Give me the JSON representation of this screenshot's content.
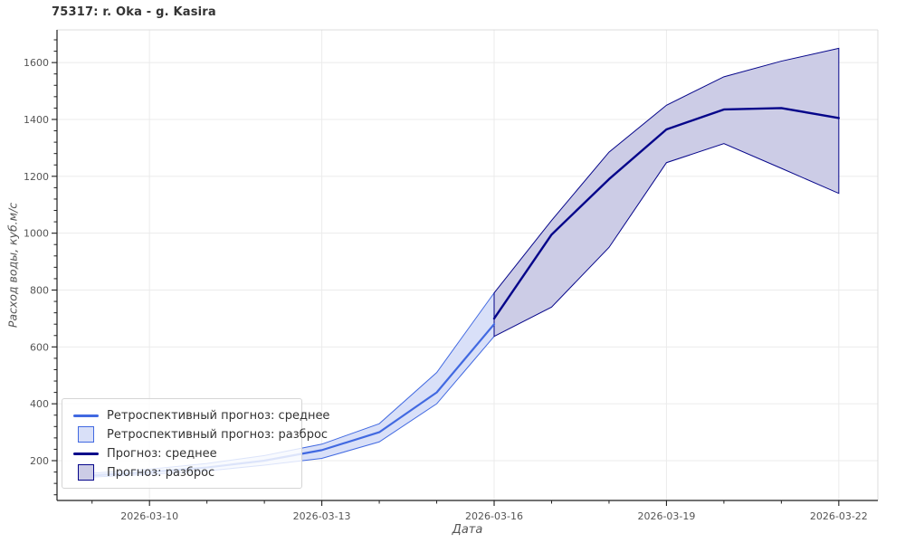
{
  "title": "75317: r. Oka - g. Kasira",
  "axes": {
    "x_label": "Дата",
    "y_label": "Расход воды, куб.м/с",
    "x_ticks": [
      "2026-03-10",
      "2026-03-13",
      "2026-03-16",
      "2026-03-19",
      "2026-03-22"
    ],
    "y_ticks": [
      200,
      400,
      600,
      800,
      1000,
      1200,
      1400,
      1600
    ]
  },
  "legend": [
    {
      "label": "Ретроспективный прогноз: среднее",
      "type": "line",
      "color": "#4169e1"
    },
    {
      "label": "Ретроспективный прогноз: разброс",
      "type": "patch",
      "fill": "#d9e0f8",
      "edge": "#4169e1"
    },
    {
      "label": "Прогноз: среднее",
      "type": "line",
      "color": "#05058a"
    },
    {
      "label": "Прогноз: разброс",
      "type": "patch",
      "fill": "#cccce6",
      "edge": "#05058a"
    }
  ],
  "colors": {
    "grid": "#ebebeb",
    "spine_dark": "#1f1f1f",
    "spine_light": "#dcdcdc",
    "tick_label": "#555555",
    "retro_line": "#4169e1",
    "retro_band_fill": "#d9e0f8",
    "retro_band_edge": "#4169e1",
    "forecast_line": "#05058a",
    "forecast_band_fill": "#cccce6",
    "forecast_band_edge": "#05058a"
  },
  "chart_data": {
    "type": "line",
    "title": "75317: r. Oka - g. Kasira",
    "xlabel": "Дата",
    "ylabel": "Расход воды, куб.м/с",
    "dates": [
      "2026-03-09",
      "2026-03-10",
      "2026-03-11",
      "2026-03-12",
      "2026-03-13",
      "2026-03-14",
      "2026-03-15",
      "2026-03-16",
      "2026-03-17",
      "2026-03-18",
      "2026-03-19",
      "2026-03-20",
      "2026-03-21",
      "2026-03-22"
    ],
    "series": [
      {
        "name": "Ретроспективный прогноз: среднее",
        "kind": "line",
        "color": "#4169e1",
        "width": 2.2,
        "x": [
          "2026-03-09",
          "2026-03-10",
          "2026-03-11",
          "2026-03-12",
          "2026-03-13",
          "2026-03-14",
          "2026-03-15",
          "2026-03-16"
        ],
        "values": [
          148,
          160,
          176,
          200,
          237,
          300,
          440,
          680
        ]
      },
      {
        "name": "Ретроспективный прогноз: разброс",
        "kind": "band",
        "fill": "#d9e0f8",
        "edge": "#4169e1",
        "x": [
          "2026-03-09",
          "2026-03-10",
          "2026-03-11",
          "2026-03-12",
          "2026-03-13",
          "2026-03-14",
          "2026-03-15",
          "2026-03-16"
        ],
        "upper": [
          156,
          170,
          190,
          218,
          258,
          330,
          510,
          790
        ],
        "lower": [
          142,
          152,
          164,
          184,
          208,
          266,
          400,
          637
        ]
      },
      {
        "name": "Прогноз: среднее",
        "kind": "line",
        "color": "#05058a",
        "width": 2.4,
        "x": [
          "2026-03-16",
          "2026-03-17",
          "2026-03-18",
          "2026-03-19",
          "2026-03-20",
          "2026-03-21",
          "2026-03-22"
        ],
        "values": [
          700,
          995,
          1190,
          1365,
          1435,
          1440,
          1405
        ]
      },
      {
        "name": "Прогноз: разброс",
        "kind": "band",
        "fill": "#cccce6",
        "edge": "#05058a",
        "x": [
          "2026-03-16",
          "2026-03-17",
          "2026-03-18",
          "2026-03-19",
          "2026-03-20",
          "2026-03-21",
          "2026-03-22"
        ],
        "upper": [
          790,
          1045,
          1285,
          1450,
          1550,
          1605,
          1650
        ],
        "lower": [
          637,
          740,
          950,
          1248,
          1315,
          1228,
          1140
        ]
      }
    ],
    "ylim": [
      60,
      1715
    ],
    "xlim_day_offset": [
      -0.61,
      13.68
    ],
    "x_start": "2026-03-09",
    "x_major_ticks": [
      "2026-03-10",
      "2026-03-13",
      "2026-03-16",
      "2026-03-19",
      "2026-03-22"
    ],
    "y_ticks": [
      200,
      400,
      600,
      800,
      1000,
      1200,
      1400,
      1600
    ],
    "y_minor_step": 40,
    "grid": true,
    "legend_position": "lower left"
  }
}
